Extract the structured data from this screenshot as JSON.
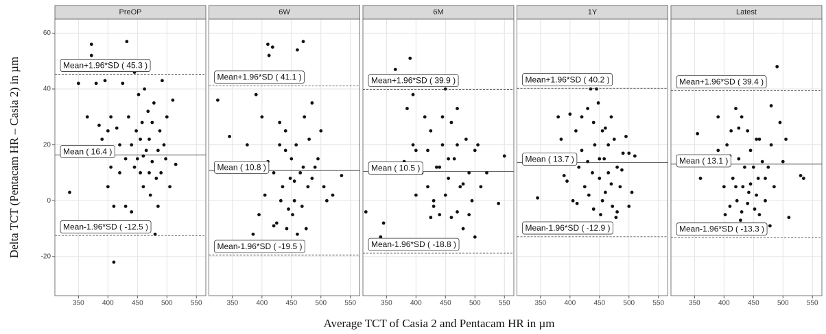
{
  "xlabel": "Average TCT of Casia 2 and Pentacam HR in µm",
  "ylabel": "Delta TCT (Pentacam HR – Casia 2) in µm",
  "chart_data": [
    {
      "type": "scatter",
      "title": "PreOP",
      "color": "#111111",
      "xlim": [
        310,
        566
      ],
      "ylim": [
        -34,
        65
      ],
      "xticks": [
        350,
        400,
        450,
        500,
        550
      ],
      "yticks": [
        -20,
        0,
        20,
        40,
        60
      ],
      "grid": true,
      "x": [
        335,
        350,
        365,
        372,
        372,
        380,
        385,
        390,
        395,
        400,
        400,
        405,
        410,
        410,
        415,
        420,
        425,
        430,
        432,
        435,
        440,
        440,
        445,
        448,
        450,
        452,
        455,
        458,
        460,
        462,
        465,
        468,
        470,
        472,
        475,
        478,
        480,
        482,
        485,
        488,
        490,
        492,
        495,
        498,
        500,
        505,
        510,
        515,
        420,
        430,
        445,
        460,
        470,
        485,
        395,
        405,
        455,
        475
      ],
      "values": [
        3,
        42,
        30,
        52,
        56,
        42,
        27,
        22,
        43,
        5,
        25,
        12,
        -2,
        -22,
        26,
        10,
        42,
        15,
        57,
        30,
        20,
        -4,
        46,
        25,
        15,
        38,
        10,
        28,
        5,
        40,
        18,
        32,
        22,
        2,
        14,
        35,
        -12,
        8,
        18,
        25,
        10,
        43,
        20,
        15,
        30,
        5,
        36,
        13,
        20,
        -2,
        12,
        16,
        10,
        -2,
        17,
        30,
        22,
        28
      ],
      "lines": [
        {
          "label": "Mean+1.96*SD ( 45.3 )",
          "value": 45.3,
          "dashed": true
        },
        {
          "label": "Mean ( 16.4 )",
          "value": 16.4,
          "dashed": false
        },
        {
          "label": "Mean-1.96*SD ( -12.5 )",
          "value": -12.5,
          "dashed": true
        }
      ]
    },
    {
      "type": "scatter",
      "title": "6W",
      "color": "#111111",
      "xlim": [
        310,
        566
      ],
      "ylim": [
        -34,
        65
      ],
      "xticks": [
        350,
        400,
        450,
        500,
        550
      ],
      "yticks": [
        -20,
        0,
        20,
        40,
        60
      ],
      "grid": true,
      "x": [
        325,
        345,
        375,
        385,
        395,
        400,
        405,
        410,
        412,
        415,
        418,
        420,
        425,
        430,
        432,
        435,
        440,
        442,
        445,
        448,
        450,
        452,
        455,
        458,
        460,
        465,
        468,
        470,
        472,
        475,
        478,
        480,
        485,
        490,
        495,
        500,
        505,
        510,
        520,
        535,
        390,
        410,
        430,
        445,
        460,
        470,
        485,
        455,
        440,
        420
      ],
      "values": [
        36,
        23,
        20,
        -12,
        -5,
        30,
        2,
        56,
        52,
        -15,
        55,
        10,
        -8,
        20,
        0,
        5,
        25,
        -10,
        -15,
        8,
        15,
        -5,
        0,
        20,
        54,
        10,
        -2,
        57,
        30,
        -10,
        5,
        22,
        8,
        12,
        15,
        25,
        5,
        0,
        2,
        9,
        38,
        14,
        28,
        -3,
        -12,
        12,
        35,
        7,
        18,
        -9
      ],
      "lines": [
        {
          "label": "Mean+1.96*SD ( 41.1 )",
          "value": 41.1,
          "dashed": true
        },
        {
          "label": "Mean ( 10.8 )",
          "value": 10.8,
          "dashed": false
        },
        {
          "label": "Mean-1.96*SD ( -19.5 )",
          "value": -19.5,
          "dashed": true
        }
      ]
    },
    {
      "type": "scatter",
      "title": "6M",
      "color": "#111111",
      "xlim": [
        310,
        566
      ],
      "ylim": [
        -34,
        65
      ],
      "xticks": [
        350,
        400,
        450,
        500,
        550
      ],
      "yticks": [
        -20,
        0,
        20,
        40,
        60
      ],
      "grid": true,
      "x": [
        315,
        340,
        345,
        365,
        380,
        390,
        395,
        400,
        405,
        410,
        415,
        420,
        425,
        430,
        435,
        440,
        445,
        450,
        455,
        460,
        465,
        470,
        475,
        480,
        485,
        490,
        495,
        500,
        505,
        510,
        520,
        540,
        550,
        385,
        400,
        410,
        420,
        430,
        440,
        450,
        460,
        470,
        480,
        490,
        455,
        425,
        395,
        470,
        500,
        445
      ],
      "values": [
        -4,
        -13,
        -8,
        47,
        14,
        51,
        38,
        18,
        -16,
        -17,
        30,
        5,
        25,
        0,
        12,
        -5,
        20,
        40,
        8,
        -6,
        15,
        33,
        5,
        -10,
        22,
        10,
        0,
        -13,
        20,
        5,
        10,
        -1,
        16,
        33,
        2,
        10,
        18,
        -2,
        12,
        2,
        28,
        -4,
        6,
        -5,
        15,
        -6,
        20,
        20,
        18,
        30
      ],
      "lines": [
        {
          "label": "Mean+1.96*SD ( 39.9 )",
          "value": 39.9,
          "dashed": true
        },
        {
          "label": "Mean ( 10.5 )",
          "value": 10.5,
          "dashed": false
        },
        {
          "label": "Mean-1.96*SD ( -18.8 )",
          "value": -18.8,
          "dashed": true
        }
      ]
    },
    {
      "type": "scatter",
      "title": "1Y",
      "color": "#111111",
      "xlim": [
        310,
        566
      ],
      "ylim": [
        -34,
        65
      ],
      "xticks": [
        350,
        400,
        450,
        500,
        550
      ],
      "yticks": [
        -20,
        0,
        20,
        40,
        60
      ],
      "grid": true,
      "x": [
        345,
        375,
        380,
        385,
        390,
        395,
        400,
        405,
        410,
        412,
        415,
        420,
        425,
        430,
        432,
        435,
        438,
        440,
        442,
        445,
        448,
        450,
        452,
        455,
        458,
        460,
        465,
        470,
        472,
        475,
        478,
        480,
        485,
        490,
        495,
        500,
        505,
        510,
        420,
        440,
        455,
        465,
        480,
        395,
        430,
        450,
        470,
        488,
        500,
        460
      ],
      "values": [
        1,
        -8,
        30,
        22,
        9,
        7,
        31,
        0,
        25,
        -1,
        12,
        18,
        5,
        33,
        2,
        40,
        10,
        -3,
        20,
        40,
        35,
        8,
        -5,
        25,
        15,
        3,
        10,
        30,
        -2,
        22,
        -6,
        12,
        5,
        17,
        23,
        17,
        3,
        16,
        30,
        28,
        0,
        20,
        -4,
        15,
        14,
        15,
        6,
        11,
        -2,
        26
      ],
      "lines": [
        {
          "label": "Mean+1.96*SD ( 40.2 )",
          "value": 40.2,
          "dashed": true
        },
        {
          "label": "Mean ( 13.7 )",
          "value": 13.7,
          "dashed": false
        },
        {
          "label": "Mean-1.96*SD ( -12.9 )",
          "value": -12.9,
          "dashed": true
        }
      ]
    },
    {
      "type": "scatter",
      "title": "Latest",
      "color": "#111111",
      "xlim": [
        310,
        566
      ],
      "ylim": [
        -34,
        65
      ],
      "xticks": [
        350,
        400,
        450,
        500,
        550
      ],
      "yticks": [
        -20,
        0,
        20,
        40,
        60
      ],
      "grid": true,
      "x": [
        355,
        360,
        370,
        390,
        400,
        402,
        405,
        410,
        412,
        415,
        420,
        422,
        425,
        428,
        430,
        432,
        435,
        438,
        440,
        442,
        445,
        450,
        452,
        455,
        458,
        460,
        465,
        470,
        475,
        478,
        480,
        485,
        490,
        495,
        500,
        505,
        510,
        530,
        535,
        390,
        410,
        420,
        430,
        445,
        460,
        470,
        480,
        440,
        455,
        425
      ],
      "values": [
        24,
        8,
        14,
        30,
        5,
        -5,
        20,
        -2,
        25,
        8,
        33,
        0,
        15,
        -7,
        30,
        5,
        12,
        -11,
        25,
        3,
        18,
        12,
        -3,
        22,
        8,
        -5,
        14,
        0,
        12,
        -9,
        20,
        5,
        48,
        28,
        14,
        22,
        -6,
        9,
        8,
        18,
        16,
        5,
        -4,
        6,
        22,
        8,
        34,
        -1,
        2,
        26
      ],
      "lines": [
        {
          "label": "Mean+1.96*SD ( 39.4 )",
          "value": 39.4,
          "dashed": true
        },
        {
          "label": "Mean ( 13.1 )",
          "value": 13.1,
          "dashed": false
        },
        {
          "label": "Mean-1.96*SD ( -13.3 )",
          "value": -13.3,
          "dashed": true
        }
      ]
    }
  ]
}
